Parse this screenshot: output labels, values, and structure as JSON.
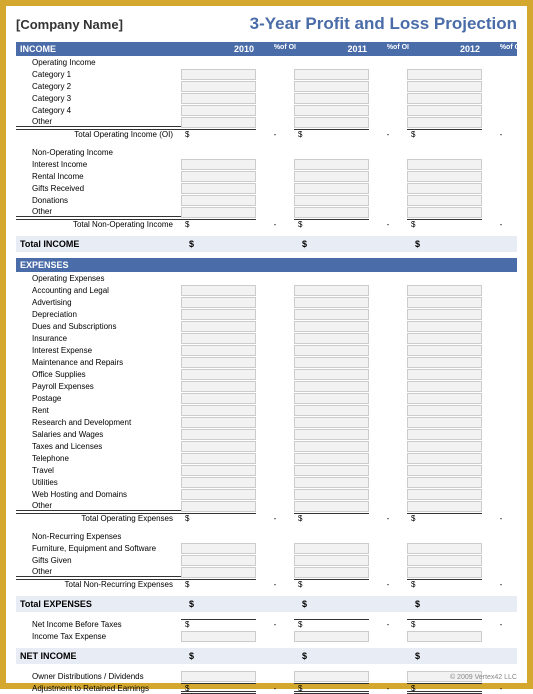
{
  "company_name": "[Company Name]",
  "title": "3-Year Profit and Loss Projection",
  "years": [
    "2010",
    "2011",
    "2012"
  ],
  "pct_label": "%of OI",
  "income": {
    "header": "INCOME",
    "operating": {
      "group": "Operating Income",
      "items": [
        "Category 1",
        "Category 2",
        "Category 3",
        "Category 4",
        "Other"
      ],
      "total": "Total Operating Income (OI)"
    },
    "nonop": {
      "group": "Non-Operating Income",
      "items": [
        "Interest Income",
        "Rental Income",
        "Gifts Received",
        "Donations",
        "Other"
      ],
      "total": "Total Non-Operating Income"
    },
    "total": "Total INCOME"
  },
  "expenses": {
    "header": "EXPENSES",
    "operating": {
      "group": "Operating Expenses",
      "items": [
        "Accounting and Legal",
        "Advertising",
        "Depreciation",
        "Dues and Subscriptions",
        "Insurance",
        "Interest Expense",
        "Maintenance and Repairs",
        "Office Supplies",
        "Payroll Expenses",
        "Postage",
        "Rent",
        "Research and Development",
        "Salaries and Wages",
        "Taxes and Licenses",
        "Telephone",
        "Travel",
        "Utilities",
        "Web Hosting and Domains",
        "Other"
      ],
      "total": "Total Operating Expenses"
    },
    "nonrec": {
      "group": "Non-Recurring Expenses",
      "items": [
        "Furniture, Equipment and Software",
        "Gifts Given",
        "Other"
      ],
      "total": "Total Non-Recurring Expenses"
    },
    "total": "Total EXPENSES"
  },
  "net_before": "Net Income Before Taxes",
  "tax_expense": "Income Tax Expense",
  "net_income": "NET INCOME",
  "owner_dist": "Owner Distributions / Dividends",
  "retained": "Adjustment to Retained Earnings",
  "dollar": "$",
  "dash": "-",
  "copyright": "© 2009 Vertex42 LLC",
  "colors": {
    "border": "#d4a82e",
    "bar": "#4a6ca8",
    "total_bg": "#e8ecf4",
    "input_bg": "#f2f2f2"
  }
}
